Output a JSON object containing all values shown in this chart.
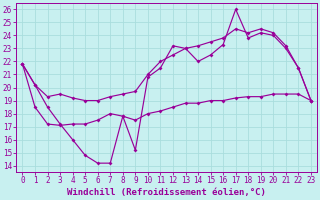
{
  "bg_color": "#c8f0f0",
  "line_color": "#990099",
  "grid_color": "#aadddd",
  "xlim_min": -0.5,
  "xlim_max": 23.5,
  "ylim_min": 13.5,
  "ylim_max": 26.5,
  "xticks": [
    0,
    1,
    2,
    3,
    4,
    5,
    6,
    7,
    8,
    9,
    10,
    11,
    12,
    13,
    14,
    15,
    16,
    17,
    18,
    19,
    20,
    21,
    22,
    23
  ],
  "yticks": [
    14,
    15,
    16,
    17,
    18,
    19,
    20,
    21,
    22,
    23,
    24,
    25,
    26
  ],
  "xlabel": "Windchill (Refroidissement éolien,°C)",
  "tick_fontsize": 5.5,
  "xlabel_fontsize": 6.5,
  "line1_y": [
    21.8,
    20.2,
    18.5,
    17.2,
    16.0,
    14.8,
    14.2,
    14.2,
    17.8,
    15.2,
    20.8,
    21.5,
    23.2,
    23.0,
    22.0,
    22.5,
    23.3,
    26.0,
    23.8,
    24.2,
    24.0,
    23.0,
    21.5,
    19.0
  ],
  "line2_y": [
    21.8,
    20.2,
    19.3,
    19.5,
    19.2,
    19.0,
    19.0,
    19.3,
    19.5,
    19.7,
    21.0,
    22.0,
    22.5,
    23.0,
    23.2,
    23.5,
    23.8,
    24.5,
    24.2,
    24.5,
    24.2,
    23.2,
    21.5,
    19.0
  ],
  "line3_y": [
    21.8,
    18.5,
    17.2,
    17.1,
    17.2,
    17.2,
    17.5,
    18.0,
    17.8,
    17.5,
    18.0,
    18.2,
    18.5,
    18.8,
    18.8,
    19.0,
    19.0,
    19.2,
    19.3,
    19.3,
    19.5,
    19.5,
    19.5,
    19.0
  ]
}
